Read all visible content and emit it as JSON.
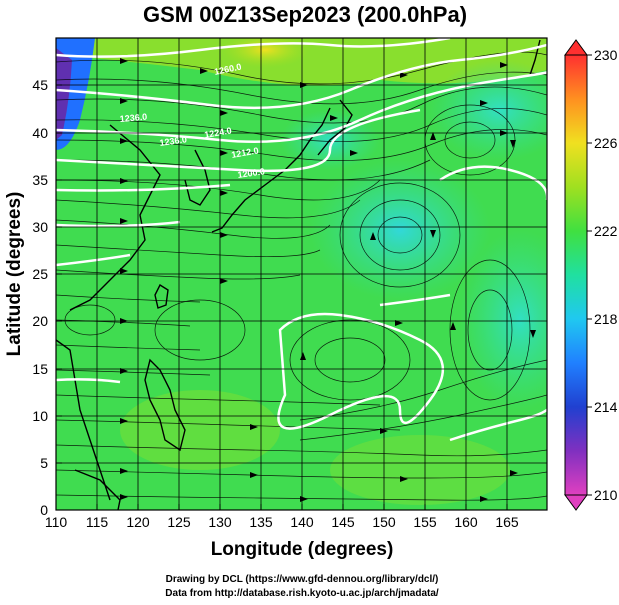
{
  "title": "GSM 00Z13Sep2023 (200.0hPa)",
  "x_axis": {
    "label": "Longitude (degrees)",
    "ticks": [
      "110",
      "115",
      "120",
      "125",
      "130",
      "135",
      "140",
      "145",
      "150",
      "155",
      "160",
      "165"
    ],
    "range": [
      110,
      170
    ]
  },
  "y_axis": {
    "label": "Latitude  (degrees)",
    "ticks": [
      "0",
      "5",
      "10",
      "15",
      "20",
      "25",
      "30",
      "35",
      "40",
      "45"
    ],
    "range": [
      0,
      50
    ]
  },
  "colorbar": {
    "ticks": [
      "230",
      "226",
      "222",
      "218",
      "214",
      "210"
    ],
    "range": [
      210,
      230
    ],
    "colors": [
      "#e040c0",
      "#4020b0",
      "#2060ff",
      "#20c0ff",
      "#20e0a0",
      "#40e040",
      "#a0e020",
      "#f0e020",
      "#ff9020",
      "#ff3030"
    ]
  },
  "contour_labels": [
    "1260.0",
    "1236.0",
    "1236.0",
    "1224.0",
    "1212.0",
    "1200.0"
  ],
  "credits": {
    "line1": "Drawing by DCL (https://www.gfd-dennou.org/library/dcl/)",
    "line2": "Data from http://database.rish.kyoto-u.ac.jp/arch/jmadata/"
  },
  "colors": {
    "background_field": "#40dc50",
    "cold_corner": "#6040c0",
    "cyan_patch": "#30e8c0",
    "contour": "#ffffff",
    "coastline": "#000000",
    "grid": "#000000"
  }
}
